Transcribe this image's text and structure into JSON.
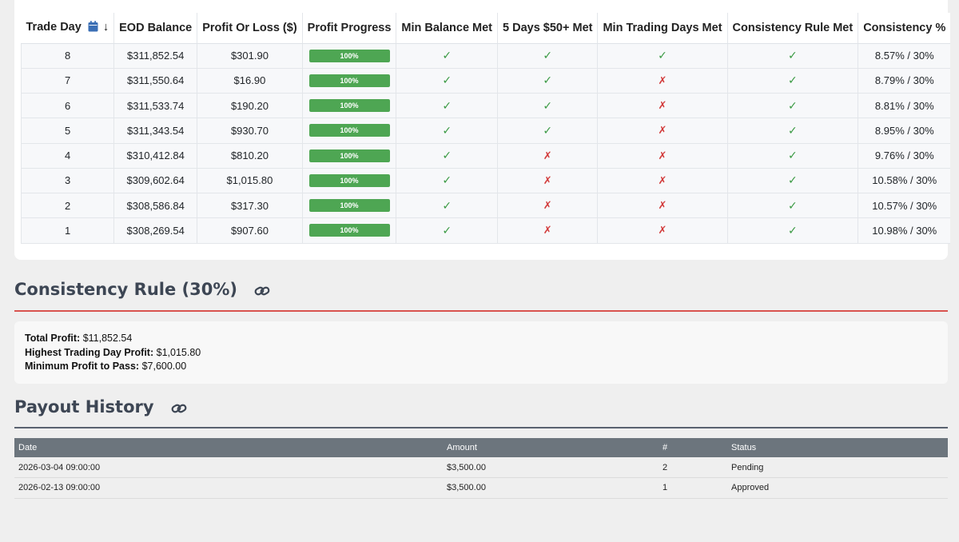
{
  "trades_table": {
    "headers": {
      "trade_day": "Trade Day",
      "eod_balance": "EOD Balance",
      "profit_loss": "Profit Or Loss ($)",
      "profit_progress": "Profit Progress",
      "min_balance": "Min Balance Met",
      "five_days": "5 Days $50+ Met",
      "min_trading_days": "Min Trading Days Met",
      "consistency_met": "Consistency Rule Met",
      "consistency_pct": "Consistency %"
    },
    "rows": [
      {
        "day": "8",
        "balance": "$311,852.54",
        "pnl": "$301.90",
        "progress": "100%",
        "progress_value": 100,
        "min_balance": true,
        "five_days": true,
        "min_days": true,
        "consistency": true,
        "consistency_pct": "8.57% / 30%"
      },
      {
        "day": "7",
        "balance": "$311,550.64",
        "pnl": "$16.90",
        "progress": "100%",
        "progress_value": 100,
        "min_balance": true,
        "five_days": true,
        "min_days": false,
        "consistency": true,
        "consistency_pct": "8.79% / 30%"
      },
      {
        "day": "6",
        "balance": "$311,533.74",
        "pnl": "$190.20",
        "progress": "100%",
        "progress_value": 100,
        "min_balance": true,
        "five_days": true,
        "min_days": false,
        "consistency": true,
        "consistency_pct": "8.81% / 30%"
      },
      {
        "day": "5",
        "balance": "$311,343.54",
        "pnl": "$930.70",
        "progress": "100%",
        "progress_value": 100,
        "min_balance": true,
        "five_days": true,
        "min_days": false,
        "consistency": true,
        "consistency_pct": "8.95% / 30%"
      },
      {
        "day": "4",
        "balance": "$310,412.84",
        "pnl": "$810.20",
        "progress": "100%",
        "progress_value": 100,
        "min_balance": true,
        "five_days": false,
        "min_days": false,
        "consistency": true,
        "consistency_pct": "9.76% / 30%"
      },
      {
        "day": "3",
        "balance": "$309,602.64",
        "pnl": "$1,015.80",
        "progress": "100%",
        "progress_value": 100,
        "min_balance": true,
        "five_days": false,
        "min_days": false,
        "consistency": true,
        "consistency_pct": "10.58% / 30%"
      },
      {
        "day": "2",
        "balance": "$308,586.84",
        "pnl": "$317.30",
        "progress": "100%",
        "progress_value": 100,
        "min_balance": true,
        "five_days": false,
        "min_days": false,
        "consistency": true,
        "consistency_pct": "10.57% / 30%"
      },
      {
        "day": "1",
        "balance": "$308,269.54",
        "pnl": "$907.60",
        "progress": "100%",
        "progress_value": 100,
        "min_balance": true,
        "five_days": false,
        "min_days": false,
        "consistency": true,
        "consistency_pct": "10.98% / 30%"
      }
    ]
  },
  "symbols": {
    "check": "✓",
    "cross": "✗",
    "sort_arrow": "↓"
  },
  "consistency_section": {
    "title": "Consistency Rule (30%)",
    "total_profit_label": "Total Profit:",
    "total_profit_value": "$11,852.54",
    "highest_day_label": "Highest Trading Day Profit:",
    "highest_day_value": "$1,015.80",
    "min_profit_label": "Minimum Profit to Pass:",
    "min_profit_value": "$7,600.00",
    "rule_color": "#d9534f"
  },
  "payout_section": {
    "title": "Payout History",
    "rule_color": "#5a6270",
    "headers": {
      "date": "Date",
      "amount": "Amount",
      "number": "#",
      "status": "Status"
    },
    "rows": [
      {
        "date": "2026-03-04 09:00:00",
        "amount": "$3,500.00",
        "number": "2",
        "status": "Pending",
        "status_type": "pending"
      },
      {
        "date": "2026-02-13 09:00:00",
        "amount": "$3,500.00",
        "number": "1",
        "status": "Approved",
        "status_type": "approved"
      }
    ]
  },
  "colors": {
    "accent_blue": "#3b6fb5",
    "success": "#4ea653",
    "danger": "#d23a3a",
    "warning": "#e0a033"
  }
}
